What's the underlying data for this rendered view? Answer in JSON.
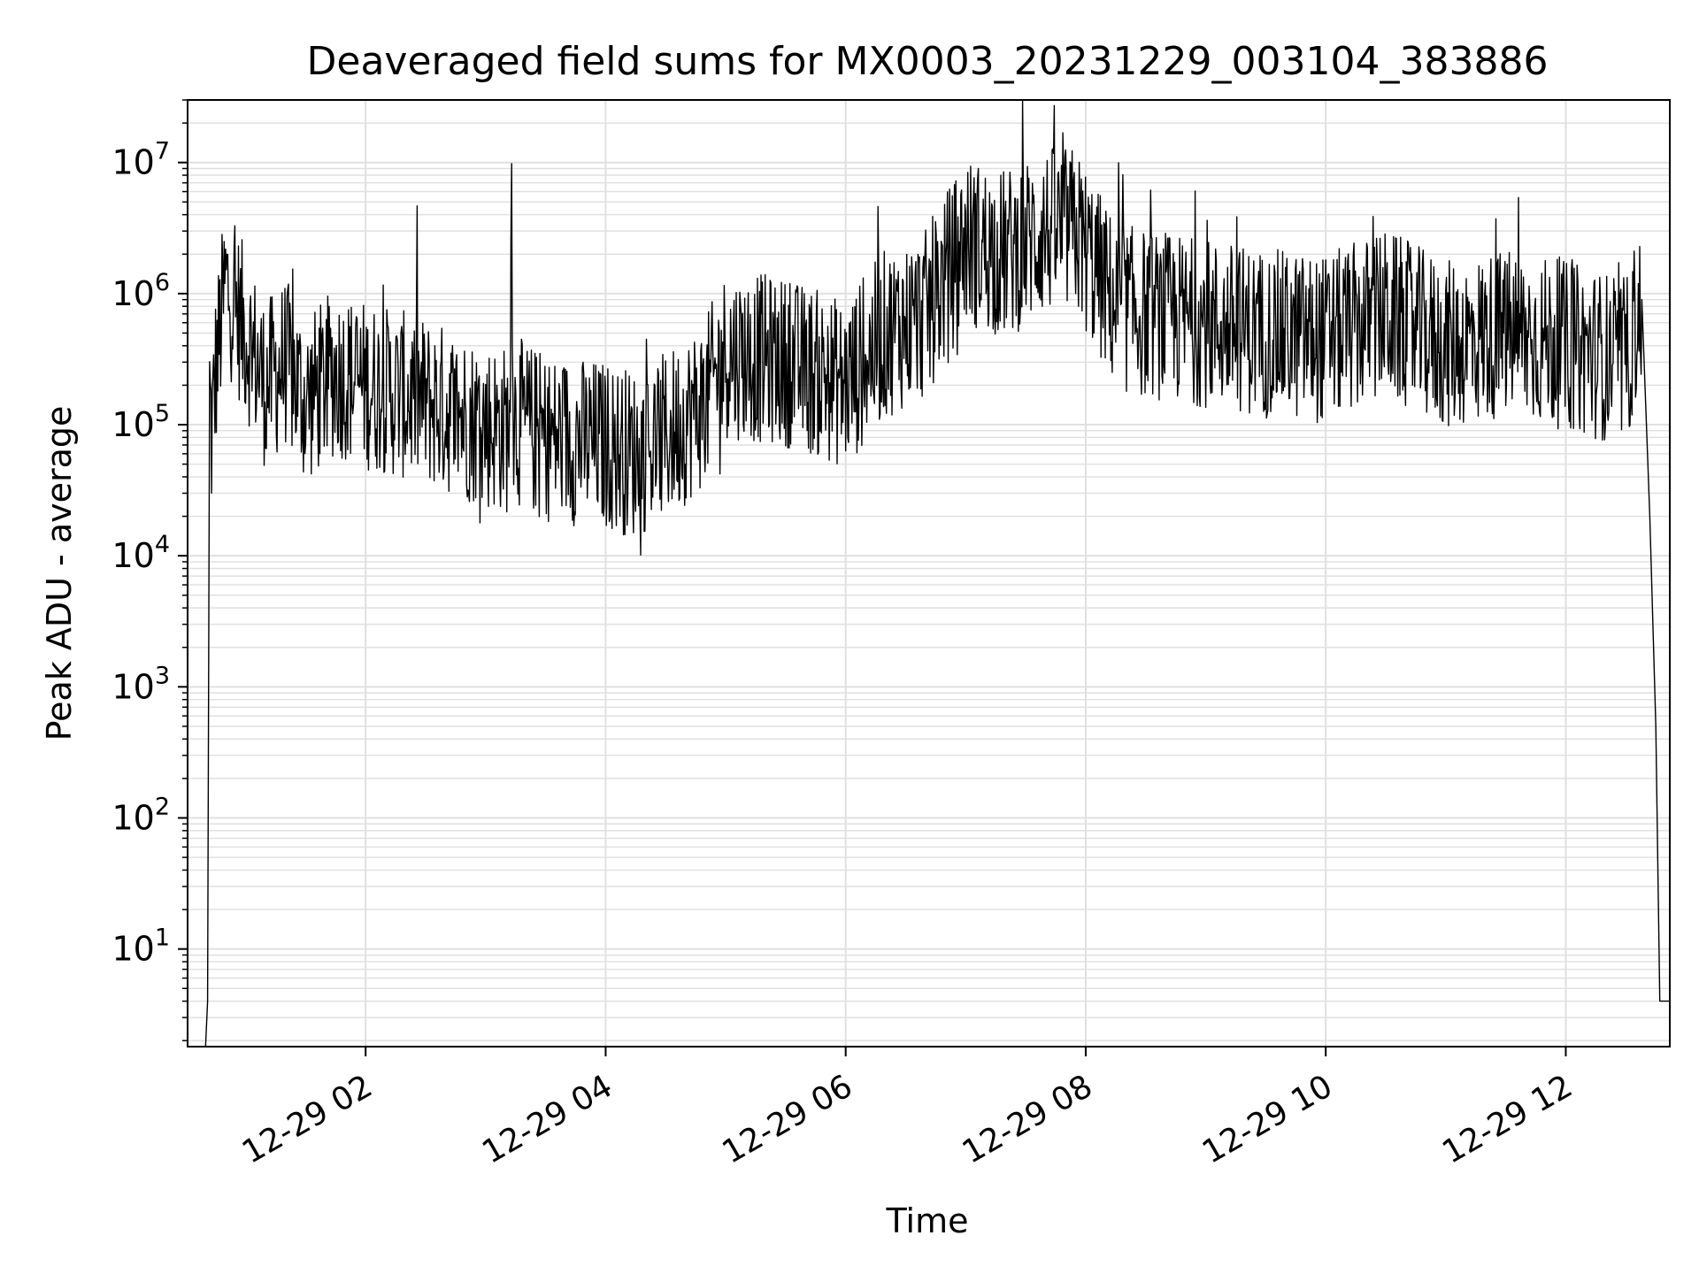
{
  "chart_data": {
    "type": "line",
    "title": "Deaveraged field sums for MX0003_20231229_003104_383886",
    "xlabel": "Time",
    "ylabel": "Peak ADU - average",
    "yscale": "log",
    "grid": "on (major and minor)",
    "line_color": "#000000",
    "grid_color": "#e0e0e0",
    "xlim": [
      "2023-12-29 00:31",
      "2023-12-29 12:52"
    ],
    "ylim": [
      1.8,
      30000000
    ],
    "x_ticks": [
      {
        "value": "2023-12-29 02:00",
        "label": "12-29 02"
      },
      {
        "value": "2023-12-29 04:00",
        "label": "12-29 04"
      },
      {
        "value": "2023-12-29 06:00",
        "label": "12-29 06"
      },
      {
        "value": "2023-12-29 08:00",
        "label": "12-29 08"
      },
      {
        "value": "2023-12-29 10:00",
        "label": "12-29 10"
      },
      {
        "value": "2023-12-29 12:00",
        "label": "12-29 12"
      }
    ],
    "y_ticks": [
      {
        "value": 10,
        "base": "10",
        "exp": "1"
      },
      {
        "value": 100,
        "base": "10",
        "exp": "2"
      },
      {
        "value": 1000,
        "base": "10",
        "exp": "3"
      },
      {
        "value": 10000,
        "base": "10",
        "exp": "4"
      },
      {
        "value": 100000,
        "base": "10",
        "exp": "5"
      },
      {
        "value": 1000000,
        "base": "10",
        "exp": "6"
      },
      {
        "value": 10000000,
        "base": "10",
        "exp": "7"
      }
    ],
    "series": [
      {
        "x": [
          "2023-12-29 00:40",
          "2023-12-29 00:41",
          "2023-12-29 00:42",
          "2023-12-29 00:43",
          "2023-12-29 00:45",
          "2023-12-29 00:50",
          "2023-12-29 01:00",
          "2023-12-29 01:10",
          "2023-12-29 01:20",
          "2023-12-29 01:30",
          "2023-12-29 01:45",
          "2023-12-29 02:00",
          "2023-12-29 02:30",
          "2023-12-29 03:00",
          "2023-12-29 03:12",
          "2023-12-29 03:13",
          "2023-12-29 03:14",
          "2023-12-29 03:30",
          "2023-12-29 04:00",
          "2023-12-29 04:15",
          "2023-12-29 04:30",
          "2023-12-29 04:50",
          "2023-12-29 05:00",
          "2023-12-29 05:30",
          "2023-12-29 05:45",
          "2023-12-29 06:00",
          "2023-12-29 06:20",
          "2023-12-29 06:40",
          "2023-12-29 07:00",
          "2023-12-29 07:20",
          "2023-12-29 07:40",
          "2023-12-29 07:55",
          "2023-12-29 08:15",
          "2023-12-29 08:30",
          "2023-12-29 09:00",
          "2023-12-29 09:30",
          "2023-12-29 10:00",
          "2023-12-29 10:30",
          "2023-12-29 11:00",
          "2023-12-29 11:30",
          "2023-12-29 12:00",
          "2023-12-29 12:30",
          "2023-12-29 12:38",
          "2023-12-29 12:42",
          "2023-12-29 12:45",
          "2023-12-29 12:47",
          "2023-12-29 12:49",
          "2023-12-29 12:52"
        ],
        "y": [
          1.8,
          4,
          190000,
          80000,
          250000,
          1200000,
          500000,
          200000,
          300000,
          150000,
          250000,
          200000,
          150000,
          100000,
          90000,
          7000000,
          110000,
          80000,
          70000,
          60000,
          80000,
          150000,
          350000,
          300000,
          250000,
          200000,
          500000,
          700000,
          2500000,
          2000000,
          3000000,
          3000000,
          800000,
          700000,
          600000,
          500000,
          450000,
          700000,
          400000,
          500000,
          400000,
          300000,
          900000,
          20000,
          500,
          4,
          4,
          4
        ]
      }
    ]
  }
}
